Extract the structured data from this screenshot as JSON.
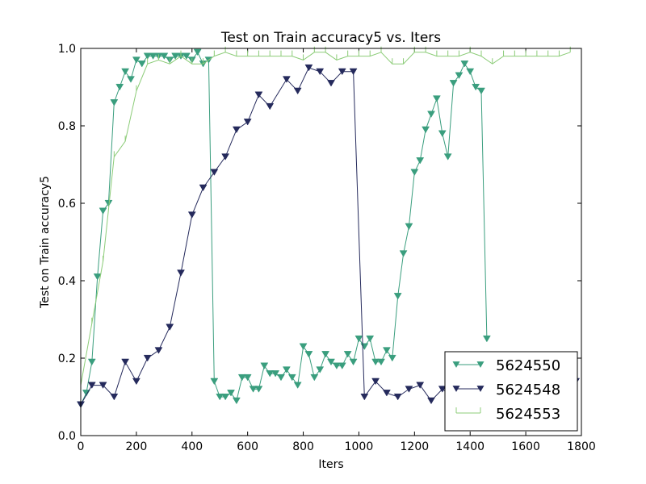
{
  "chart_data": {
    "type": "line",
    "title": "Test on Train accuracy5  vs. Iters",
    "xlabel": "Iters",
    "ylabel": "Test on Train accuracy5",
    "xlim": [
      0,
      1800
    ],
    "ylim": [
      0,
      1.0
    ],
    "xticks": [
      "0",
      "200",
      "400",
      "600",
      "800",
      "1000",
      "1200",
      "1400",
      "1600",
      "1800"
    ],
    "yticks": [
      "0.0",
      "0.2",
      "0.4",
      "0.6",
      "0.8",
      "1.0"
    ],
    "grid": false,
    "legend_position": "lower-right",
    "series": [
      {
        "name": "5624550",
        "color": "#3a9e7e",
        "marker": "triangle-down",
        "points": [
          [
            0,
            0.08
          ],
          [
            20,
            0.11
          ],
          [
            40,
            0.19
          ],
          [
            60,
            0.41
          ],
          [
            80,
            0.58
          ],
          [
            100,
            0.6
          ],
          [
            120,
            0.86
          ],
          [
            140,
            0.9
          ],
          [
            160,
            0.94
          ],
          [
            180,
            0.92
          ],
          [
            200,
            0.97
          ],
          [
            220,
            0.96
          ],
          [
            240,
            0.98
          ],
          [
            260,
            0.98
          ],
          [
            280,
            0.98
          ],
          [
            300,
            0.98
          ],
          [
            320,
            0.97
          ],
          [
            340,
            0.98
          ],
          [
            360,
            0.98
          ],
          [
            380,
            0.98
          ],
          [
            400,
            0.97
          ],
          [
            420,
            0.99
          ],
          [
            440,
            0.96
          ],
          [
            460,
            0.97
          ],
          [
            480,
            0.14
          ],
          [
            500,
            0.1
          ],
          [
            520,
            0.1
          ],
          [
            540,
            0.11
          ],
          [
            560,
            0.09
          ],
          [
            580,
            0.15
          ],
          [
            600,
            0.15
          ],
          [
            620,
            0.12
          ],
          [
            640,
            0.12
          ],
          [
            660,
            0.18
          ],
          [
            680,
            0.16
          ],
          [
            700,
            0.16
          ],
          [
            720,
            0.15
          ],
          [
            740,
            0.17
          ],
          [
            760,
            0.15
          ],
          [
            780,
            0.13
          ],
          [
            800,
            0.23
          ],
          [
            820,
            0.21
          ],
          [
            840,
            0.15
          ],
          [
            860,
            0.17
          ],
          [
            880,
            0.21
          ],
          [
            900,
            0.19
          ],
          [
            920,
            0.18
          ],
          [
            940,
            0.18
          ],
          [
            960,
            0.21
          ],
          [
            980,
            0.19
          ],
          [
            1000,
            0.25
          ],
          [
            1020,
            0.23
          ],
          [
            1040,
            0.25
          ],
          [
            1060,
            0.19
          ],
          [
            1080,
            0.19
          ],
          [
            1100,
            0.22
          ],
          [
            1120,
            0.2
          ],
          [
            1140,
            0.36
          ],
          [
            1160,
            0.47
          ],
          [
            1180,
            0.54
          ],
          [
            1200,
            0.68
          ],
          [
            1220,
            0.71
          ],
          [
            1240,
            0.79
          ],
          [
            1260,
            0.83
          ],
          [
            1280,
            0.87
          ],
          [
            1300,
            0.78
          ],
          [
            1320,
            0.72
          ],
          [
            1340,
            0.91
          ],
          [
            1360,
            0.93
          ],
          [
            1380,
            0.96
          ],
          [
            1400,
            0.94
          ],
          [
            1420,
            0.9
          ],
          [
            1440,
            0.89
          ],
          [
            1460,
            0.25
          ]
        ]
      },
      {
        "name": "5624548",
        "color": "#252a5c",
        "marker": "triangle-down",
        "points": [
          [
            0,
            0.08
          ],
          [
            40,
            0.13
          ],
          [
            80,
            0.13
          ],
          [
            120,
            0.1
          ],
          [
            160,
            0.19
          ],
          [
            200,
            0.14
          ],
          [
            240,
            0.2
          ],
          [
            280,
            0.22
          ],
          [
            320,
            0.28
          ],
          [
            360,
            0.42
          ],
          [
            400,
            0.57
          ],
          [
            440,
            0.64
          ],
          [
            480,
            0.68
          ],
          [
            520,
            0.72
          ],
          [
            560,
            0.79
          ],
          [
            600,
            0.81
          ],
          [
            640,
            0.88
          ],
          [
            680,
            0.85
          ],
          [
            740,
            0.92
          ],
          [
            780,
            0.89
          ],
          [
            820,
            0.95
          ],
          [
            860,
            0.94
          ],
          [
            900,
            0.91
          ],
          [
            940,
            0.94
          ],
          [
            980,
            0.94
          ],
          [
            1020,
            0.1
          ],
          [
            1060,
            0.14
          ],
          [
            1100,
            0.11
          ],
          [
            1140,
            0.1
          ],
          [
            1180,
            0.12
          ],
          [
            1220,
            0.13
          ],
          [
            1260,
            0.09
          ],
          [
            1300,
            0.12
          ],
          [
            1340,
            0.1
          ],
          [
            1380,
            0.12
          ],
          [
            1420,
            0.14
          ],
          [
            1460,
            0.13
          ],
          [
            1500,
            0.1
          ],
          [
            1540,
            0.1
          ],
          [
            1580,
            0.11
          ],
          [
            1620,
            0.12
          ],
          [
            1660,
            0.12
          ],
          [
            1700,
            0.13
          ],
          [
            1740,
            0.12
          ],
          [
            1780,
            0.14
          ]
        ]
      },
      {
        "name": "5624553",
        "color": "#8ccc78",
        "marker": "tick",
        "points": [
          [
            0,
            0.13
          ],
          [
            40,
            0.29
          ],
          [
            80,
            0.45
          ],
          [
            120,
            0.72
          ],
          [
            160,
            0.76
          ],
          [
            200,
            0.89
          ],
          [
            240,
            0.96
          ],
          [
            280,
            0.97
          ],
          [
            320,
            0.96
          ],
          [
            360,
            0.98
          ],
          [
            400,
            0.96
          ],
          [
            440,
            0.96
          ],
          [
            480,
            0.98
          ],
          [
            520,
            0.99
          ],
          [
            560,
            0.98
          ],
          [
            600,
            0.98
          ],
          [
            640,
            0.98
          ],
          [
            680,
            0.98
          ],
          [
            720,
            0.98
          ],
          [
            760,
            0.98
          ],
          [
            800,
            0.97
          ],
          [
            840,
            0.99
          ],
          [
            880,
            0.99
          ],
          [
            920,
            0.97
          ],
          [
            960,
            0.98
          ],
          [
            1000,
            0.98
          ],
          [
            1040,
            0.98
          ],
          [
            1080,
            0.99
          ],
          [
            1120,
            0.96
          ],
          [
            1160,
            0.96
          ],
          [
            1200,
            0.99
          ],
          [
            1240,
            0.99
          ],
          [
            1280,
            0.98
          ],
          [
            1320,
            0.98
          ],
          [
            1360,
            0.98
          ],
          [
            1400,
            0.99
          ],
          [
            1440,
            0.98
          ],
          [
            1480,
            0.96
          ],
          [
            1520,
            0.98
          ],
          [
            1560,
            0.98
          ],
          [
            1600,
            0.98
          ],
          [
            1640,
            0.98
          ],
          [
            1680,
            0.98
          ],
          [
            1720,
            0.98
          ],
          [
            1760,
            0.99
          ]
        ]
      }
    ]
  }
}
